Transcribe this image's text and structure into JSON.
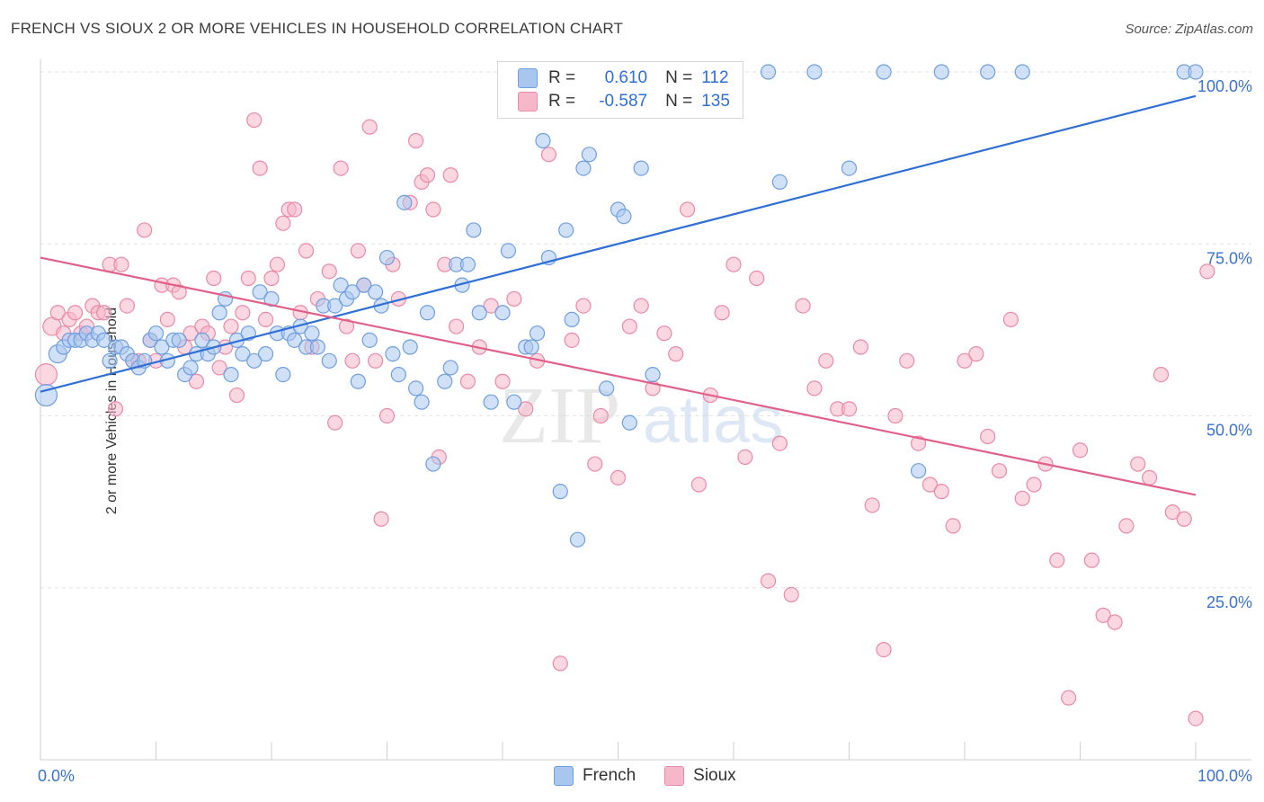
{
  "header": {
    "title": "FRENCH VS SIOUX 2 OR MORE VEHICLES IN HOUSEHOLD CORRELATION CHART",
    "source": "Source: ZipAtlas.com"
  },
  "legend": {
    "rows": [
      {
        "r_label": "R =",
        "r_value": "0.610",
        "n_label": "N =",
        "n_value": "112",
        "color": "#a9c6ef",
        "border": "#6f9fe0"
      },
      {
        "r_label": "R =",
        "r_value": "-0.587",
        "n_label": "N =",
        "n_value": "135",
        "color": "#f7b7cb",
        "border": "#ea89a8"
      }
    ]
  },
  "bottom_legend": [
    {
      "label": "French",
      "color": "#a9c6ef",
      "border": "#6f9fe0"
    },
    {
      "label": "Sioux",
      "color": "#f7b7cb",
      "border": "#ea89a8"
    }
  ],
  "watermark": {
    "zip": "ZIP",
    "atlas": "atlas"
  },
  "chart_data": {
    "type": "scatter",
    "title": "FRENCH VS SIOUX 2 OR MORE VEHICLES IN HOUSEHOLD CORRELATION CHART",
    "xlabel": "",
    "ylabel": "2 or more Vehicles in Household",
    "xlim": [
      0,
      100
    ],
    "ylim": [
      0,
      100
    ],
    "x_tick_labels": [
      "0.0%",
      "100.0%"
    ],
    "y_tick_labels": [
      {
        "value": 25,
        "label": "25.0%"
      },
      {
        "value": 50,
        "label": "50.0%"
      },
      {
        "value": 75,
        "label": "75.0%"
      },
      {
        "value": 100,
        "label": "100.0%"
      }
    ],
    "grid": true,
    "series": [
      {
        "name": "French",
        "color": "#6f9fe0",
        "fill": "#a9c6ef",
        "line_color": "#2f6fd6",
        "trend": [
          [
            0,
            53.5
          ],
          [
            100,
            96.5
          ]
        ],
        "points": [
          [
            0.5,
            53
          ],
          [
            1.5,
            59
          ],
          [
            2,
            60
          ],
          [
            2.5,
            61
          ],
          [
            3,
            61
          ],
          [
            3.5,
            61
          ],
          [
            4,
            62
          ],
          [
            4.5,
            61
          ],
          [
            5,
            62
          ],
          [
            5.5,
            61
          ],
          [
            6,
            58
          ],
          [
            6.5,
            60
          ],
          [
            7,
            60
          ],
          [
            7.5,
            59
          ],
          [
            8,
            58
          ],
          [
            8.5,
            57
          ],
          [
            9,
            58
          ],
          [
            9.5,
            61
          ],
          [
            10,
            62
          ],
          [
            10.5,
            60
          ],
          [
            11,
            58
          ],
          [
            11.5,
            61
          ],
          [
            12,
            61
          ],
          [
            12.5,
            56
          ],
          [
            13,
            57
          ],
          [
            13.5,
            59
          ],
          [
            14,
            61
          ],
          [
            14.5,
            59
          ],
          [
            15,
            60
          ],
          [
            15.5,
            65
          ],
          [
            16,
            67
          ],
          [
            16.5,
            56
          ],
          [
            17,
            61
          ],
          [
            17.5,
            59
          ],
          [
            18,
            62
          ],
          [
            18.5,
            58
          ],
          [
            19,
            68
          ],
          [
            19.5,
            59
          ],
          [
            20,
            67
          ],
          [
            20.5,
            62
          ],
          [
            21,
            56
          ],
          [
            21.5,
            62
          ],
          [
            22,
            61
          ],
          [
            22.5,
            63
          ],
          [
            23,
            60
          ],
          [
            23.5,
            62
          ],
          [
            24,
            60
          ],
          [
            24.5,
            66
          ],
          [
            25,
            58
          ],
          [
            25.5,
            66
          ],
          [
            26,
            69
          ],
          [
            26.5,
            67
          ],
          [
            27,
            68
          ],
          [
            27.5,
            55
          ],
          [
            28,
            69
          ],
          [
            28.5,
            61
          ],
          [
            29,
            68
          ],
          [
            29.5,
            66
          ],
          [
            30,
            73
          ],
          [
            30.5,
            59
          ],
          [
            31,
            56
          ],
          [
            31.5,
            81
          ],
          [
            32,
            60
          ],
          [
            32.5,
            54
          ],
          [
            33,
            52
          ],
          [
            33.5,
            65
          ],
          [
            34,
            43
          ],
          [
            35,
            55
          ],
          [
            35.5,
            57
          ],
          [
            36,
            72
          ],
          [
            36.5,
            69
          ],
          [
            37,
            72
          ],
          [
            37.5,
            77
          ],
          [
            38,
            65
          ],
          [
            39,
            52
          ],
          [
            40,
            65
          ],
          [
            40.5,
            74
          ],
          [
            41,
            52
          ],
          [
            42,
            60
          ],
          [
            42.5,
            60
          ],
          [
            43,
            62
          ],
          [
            43.5,
            90
          ],
          [
            44,
            73
          ],
          [
            45,
            39
          ],
          [
            45.5,
            77
          ],
          [
            46,
            64
          ],
          [
            46.5,
            32
          ],
          [
            47,
            86
          ],
          [
            47.5,
            88
          ],
          [
            49,
            54
          ],
          [
            50,
            80
          ],
          [
            50.5,
            79
          ],
          [
            51,
            49
          ],
          [
            52,
            86
          ],
          [
            53,
            56
          ],
          [
            53.5,
            100
          ],
          [
            54,
            100
          ],
          [
            57,
            100
          ],
          [
            60,
            100
          ],
          [
            63,
            100
          ],
          [
            64,
            84
          ],
          [
            67,
            100
          ],
          [
            70,
            86
          ],
          [
            73,
            100
          ],
          [
            76,
            42
          ],
          [
            78,
            100
          ],
          [
            82,
            100
          ],
          [
            85,
            100
          ],
          [
            99,
            100
          ],
          [
            100,
            100
          ],
          [
            49.5,
            100
          ],
          [
            48.5,
            100
          ]
        ]
      },
      {
        "name": "Sioux",
        "color": "#ea89a8",
        "fill": "#f7b7cb",
        "line_color": "#e0608a",
        "trend": [
          [
            0,
            73
          ],
          [
            100,
            38.5
          ]
        ],
        "points": [
          [
            0.5,
            56
          ],
          [
            1,
            63
          ],
          [
            1.5,
            65
          ],
          [
            2,
            62
          ],
          [
            2.5,
            64
          ],
          [
            3,
            65
          ],
          [
            3.5,
            62
          ],
          [
            4,
            63
          ],
          [
            4.5,
            66
          ],
          [
            5,
            65
          ],
          [
            5.5,
            65
          ],
          [
            6,
            72
          ],
          [
            6.5,
            51
          ],
          [
            7,
            72
          ],
          [
            7.5,
            66
          ],
          [
            8,
            58
          ],
          [
            8.5,
            58
          ],
          [
            9,
            77
          ],
          [
            9.5,
            61
          ],
          [
            10,
            58
          ],
          [
            10.5,
            69
          ],
          [
            11,
            64
          ],
          [
            11.5,
            69
          ],
          [
            12,
            68
          ],
          [
            12.5,
            60
          ],
          [
            13,
            62
          ],
          [
            13.5,
            55
          ],
          [
            14,
            63
          ],
          [
            14.5,
            62
          ],
          [
            15,
            70
          ],
          [
            15.5,
            57
          ],
          [
            16,
            60
          ],
          [
            16.5,
            63
          ],
          [
            17,
            53
          ],
          [
            17.5,
            65
          ],
          [
            18,
            70
          ],
          [
            18.5,
            93
          ],
          [
            19,
            86
          ],
          [
            19.5,
            64
          ],
          [
            20,
            70
          ],
          [
            20.5,
            72
          ],
          [
            21,
            78
          ],
          [
            21.5,
            80
          ],
          [
            22,
            80
          ],
          [
            22.5,
            65
          ],
          [
            23,
            74
          ],
          [
            23.5,
            60
          ],
          [
            24,
            67
          ],
          [
            25,
            71
          ],
          [
            25.5,
            49
          ],
          [
            26,
            86
          ],
          [
            26.5,
            63
          ],
          [
            27,
            58
          ],
          [
            27.5,
            74
          ],
          [
            28,
            69
          ],
          [
            28.5,
            92
          ],
          [
            29,
            58
          ],
          [
            29.5,
            35
          ],
          [
            30,
            50
          ],
          [
            30.5,
            72
          ],
          [
            31,
            67
          ],
          [
            32,
            81
          ],
          [
            32.5,
            90
          ],
          [
            33,
            84
          ],
          [
            33.5,
            85
          ],
          [
            34,
            80
          ],
          [
            34.5,
            44
          ],
          [
            35,
            72
          ],
          [
            35.5,
            85
          ],
          [
            36,
            63
          ],
          [
            37,
            55
          ],
          [
            38,
            60
          ],
          [
            39,
            66
          ],
          [
            40,
            55
          ],
          [
            41,
            67
          ],
          [
            42,
            51
          ],
          [
            43,
            58
          ],
          [
            44,
            88
          ],
          [
            45,
            14
          ],
          [
            46,
            61
          ],
          [
            47,
            66
          ],
          [
            48,
            43
          ],
          [
            48.5,
            50
          ],
          [
            50,
            41
          ],
          [
            51,
            63
          ],
          [
            52,
            66
          ],
          [
            53,
            54
          ],
          [
            54,
            62
          ],
          [
            55,
            59
          ],
          [
            56,
            80
          ],
          [
            57,
            40
          ],
          [
            58,
            53
          ],
          [
            59,
            65
          ],
          [
            60,
            72
          ],
          [
            61,
            44
          ],
          [
            62,
            70
          ],
          [
            63,
            26
          ],
          [
            64,
            46
          ],
          [
            65,
            24
          ],
          [
            66,
            66
          ],
          [
            67,
            54
          ],
          [
            68,
            58
          ],
          [
            69,
            51
          ],
          [
            70,
            51
          ],
          [
            71,
            60
          ],
          [
            72,
            37
          ],
          [
            73,
            16
          ],
          [
            74,
            50
          ],
          [
            75,
            58
          ],
          [
            76,
            46
          ],
          [
            77,
            40
          ],
          [
            78,
            39
          ],
          [
            79,
            34
          ],
          [
            80,
            58
          ],
          [
            81,
            59
          ],
          [
            82,
            47
          ],
          [
            83,
            42
          ],
          [
            84,
            64
          ],
          [
            85,
            38
          ],
          [
            86,
            40
          ],
          [
            87,
            43
          ],
          [
            88,
            29
          ],
          [
            89,
            9
          ],
          [
            90,
            45
          ],
          [
            91,
            29
          ],
          [
            92,
            21
          ],
          [
            93,
            20
          ],
          [
            94,
            34
          ],
          [
            95,
            43
          ],
          [
            96,
            41
          ],
          [
            97,
            56
          ],
          [
            98,
            36
          ],
          [
            99,
            35
          ],
          [
            100,
            6
          ],
          [
            101,
            71
          ]
        ]
      }
    ]
  }
}
